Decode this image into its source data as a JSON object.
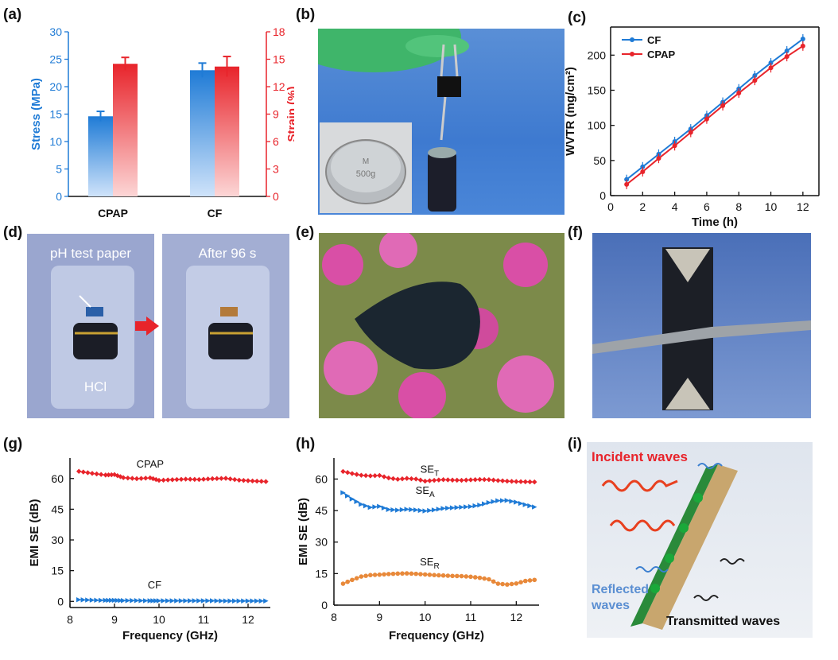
{
  "panel_labels": [
    "(a)",
    "(b)",
    "(c)",
    "(d)",
    "(e)",
    "(f)",
    "(g)",
    "(h)",
    "(i)"
  ],
  "colors": {
    "blue": "#1f7bd6",
    "red": "#e8242b",
    "orange": "#e8893a"
  },
  "chart_data": [
    {
      "id": "a",
      "type": "bar",
      "categories": [
        "CPAP",
        "CF"
      ],
      "series": [
        {
          "name": "Stress (MPa)",
          "axis": "left",
          "color": "#1f7bd6",
          "values": [
            14.6,
            23.0
          ],
          "errors": [
            0.9,
            1.3
          ]
        },
        {
          "name": "Strain (%)",
          "axis": "right",
          "color": "#e8242b",
          "values": [
            14.5,
            14.2
          ],
          "errors": [
            0.7,
            1.1
          ]
        }
      ],
      "ylabel_left": "Stress (MPa)",
      "ylabel_right": "Strain (%)",
      "ylim_left": [
        0,
        30
      ],
      "ylim_right": [
        0,
        18
      ],
      "yticks_left": [
        "0",
        "5",
        "10",
        "15",
        "20",
        "25",
        "30"
      ],
      "yticks_right": [
        "0",
        "3",
        "6",
        "9",
        "12",
        "15",
        "18"
      ]
    },
    {
      "id": "c",
      "type": "line",
      "x": [
        1,
        2,
        3,
        4,
        5,
        6,
        7,
        8,
        9,
        10,
        11,
        12
      ],
      "series": [
        {
          "name": "CF",
          "color": "#1f7bd6",
          "values": [
            23,
            41,
            59,
            77,
            95,
            114,
            133,
            152,
            171,
            189,
            206,
            223
          ]
        },
        {
          "name": "CPAP",
          "color": "#e8242b",
          "values": [
            16,
            34,
            53,
            71,
            90,
            109,
            128,
            146,
            164,
            182,
            198,
            213
          ]
        }
      ],
      "xlabel": "Time (h)",
      "ylabel": "WVTR (mg/cm²)",
      "xlim": [
        0,
        13
      ],
      "ylim": [
        0,
        240
      ],
      "xticks": [
        "0",
        "2",
        "4",
        "6",
        "8",
        "10",
        "12"
      ],
      "yticks": [
        "0",
        "50",
        "100",
        "150",
        "200"
      ],
      "legend": "top-left"
    },
    {
      "id": "g",
      "type": "line",
      "x": [
        8.2,
        8.5,
        8.8,
        9.0,
        9.2,
        9.5,
        9.8,
        10.0,
        10.3,
        10.6,
        10.9,
        11.2,
        11.5,
        11.8,
        12.1,
        12.4
      ],
      "series": [
        {
          "name": "CPAP",
          "color": "#e8242b",
          "marker": "diamond",
          "values": [
            63.5,
            62.5,
            61.7,
            61.9,
            60.4,
            59.9,
            60.3,
            59.1,
            59.4,
            59.7,
            59.5,
            59.9,
            60.1,
            59.2,
            58.8,
            58.5
          ]
        },
        {
          "name": "CF",
          "color": "#1f7bd6",
          "marker": "triangle",
          "values": [
            0.8,
            0.6,
            0.5,
            0.5,
            0.4,
            0.4,
            0.3,
            0.3,
            0.3,
            0.3,
            0.3,
            0.3,
            0.2,
            0.2,
            0.2,
            0.2
          ]
        }
      ],
      "labels": [
        "CPAP",
        "CF"
      ],
      "xlabel": "Frequency (GHz)",
      "ylabel": "EMI SE (dB)",
      "xlim": [
        8,
        12.5
      ],
      "ylim": [
        -3,
        70
      ],
      "xticks": [
        "8",
        "9",
        "10",
        "11",
        "12"
      ],
      "yticks": [
        "0",
        "15",
        "30",
        "45",
        "60"
      ]
    },
    {
      "id": "h",
      "type": "line",
      "x": [
        8.2,
        8.4,
        8.6,
        8.8,
        9.0,
        9.2,
        9.4,
        9.6,
        9.8,
        10.0,
        10.2,
        10.4,
        10.6,
        10.8,
        11.0,
        11.2,
        11.4,
        11.6,
        11.8,
        12.0,
        12.2,
        12.4
      ],
      "series": [
        {
          "name": "SE_T",
          "color": "#e8242b",
          "marker": "diamond",
          "values": [
            63.6,
            62.6,
            61.8,
            61.5,
            61.7,
            60.5,
            59.9,
            60.3,
            60.0,
            59.0,
            59.4,
            59.7,
            59.5,
            59.4,
            59.6,
            59.8,
            59.7,
            59.3,
            59.0,
            58.8,
            58.7,
            58.6
          ]
        },
        {
          "name": "SE_A",
          "color": "#1f7bd6",
          "marker": "triangle",
          "values": [
            53.5,
            50.5,
            48.0,
            46.5,
            47.0,
            45.5,
            45.2,
            45.6,
            45.3,
            44.8,
            45.3,
            46.0,
            46.3,
            46.6,
            46.9,
            47.6,
            48.8,
            49.7,
            49.8,
            49.0,
            47.8,
            46.7
          ]
        },
        {
          "name": "SE_R",
          "color": "#e8893a",
          "marker": "circle",
          "values": [
            10.2,
            12.0,
            13.6,
            14.3,
            14.5,
            14.8,
            15.0,
            15.1,
            14.9,
            14.6,
            14.3,
            14.1,
            13.9,
            13.8,
            13.5,
            13.0,
            12.3,
            10.2,
            9.8,
            10.3,
            11.5,
            12.0
          ]
        }
      ],
      "xlabel": "Frequency (GHz)",
      "ylabel": "EMI SE (dB)",
      "xlim": [
        8,
        12.5
      ],
      "ylim": [
        0,
        70
      ],
      "xticks": [
        "8",
        "9",
        "10",
        "11",
        "12"
      ],
      "yticks": [
        "0",
        "15",
        "30",
        "45",
        "60"
      ]
    }
  ],
  "series_labels": {
    "h": [
      {
        "main": "SE",
        "sub": "T"
      },
      {
        "main": "SE",
        "sub": "A"
      },
      {
        "main": "SE",
        "sub": "R"
      }
    ]
  },
  "photos": {
    "b": {
      "weight_mark": "M",
      "weight_value": "500g"
    },
    "d": {
      "left_title": "pH test paper",
      "right_title": "After 96 s",
      "acid": "HCl"
    },
    "i": {
      "incident": "Incident waves",
      "reflected_1": "Reflected",
      "reflected_2": "waves",
      "transmitted": "Transmitted waves"
    }
  }
}
